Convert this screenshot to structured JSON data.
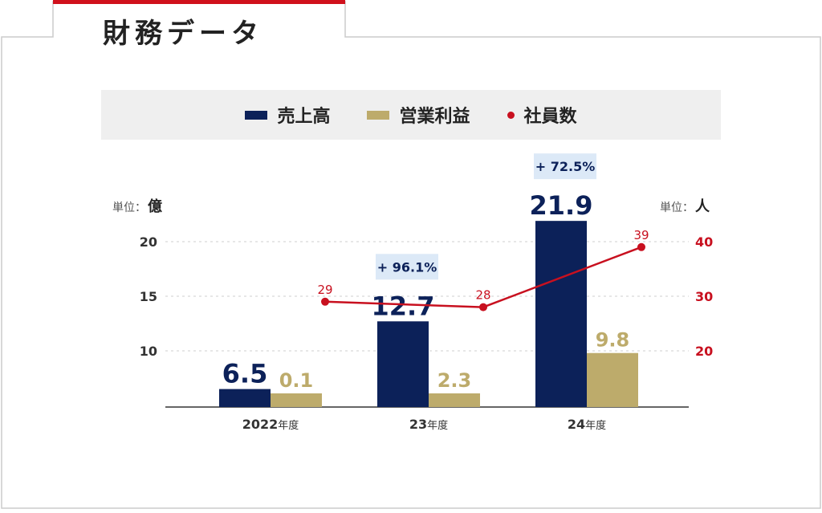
{
  "header": {
    "title": "財務データ"
  },
  "legend": [
    {
      "label": "売上高",
      "color": "#0c2159",
      "kind": "bar"
    },
    {
      "label": "営業利益",
      "color": "#bdab6b",
      "kind": "bar"
    },
    {
      "label": "社員数",
      "color": "#c8101f",
      "kind": "dot"
    }
  ],
  "units": {
    "left_prefix": "単位：",
    "left_unit": "億",
    "right_prefix": "単位：",
    "right_unit": "人"
  },
  "colors": {
    "sales": "#0c2159",
    "profit": "#bdab6b",
    "employees": "#c8101f",
    "growth_bg": "#dce9f7",
    "accent_top": "#d0111c",
    "border": "#cccccc"
  },
  "chart_data": {
    "type": "bar",
    "categories": [
      "2022年度",
      "23年度",
      "24年度"
    ],
    "category_parts": [
      {
        "main": "2022",
        "suffix": "年度"
      },
      {
        "main": "23",
        "suffix": "年度"
      },
      {
        "main": "24",
        "suffix": "年度"
      }
    ],
    "series": [
      {
        "name": "売上高",
        "type": "bar",
        "axis": "left",
        "values": [
          6.5,
          12.7,
          21.9
        ],
        "labels": [
          "6.5",
          "12.7",
          "21.9"
        ]
      },
      {
        "name": "営業利益",
        "type": "bar",
        "axis": "left",
        "values": [
          0.1,
          2.3,
          9.8
        ],
        "labels": [
          "0.1",
          "2.3",
          "9.8"
        ]
      },
      {
        "name": "社員数",
        "type": "line",
        "axis": "right",
        "values": [
          29,
          28,
          39
        ],
        "labels": [
          "29",
          "28",
          "39"
        ]
      }
    ],
    "growth_labels": [
      null,
      "+ 96.1%",
      "+ 72.5%"
    ],
    "y_left": {
      "ticks": [
        10,
        15,
        20
      ],
      "tick_labels": [
        "10",
        "15",
        "20"
      ]
    },
    "y_right": {
      "ticks": [
        20,
        30,
        40
      ],
      "tick_labels": [
        "20",
        "30",
        "40"
      ]
    },
    "grid": true
  }
}
